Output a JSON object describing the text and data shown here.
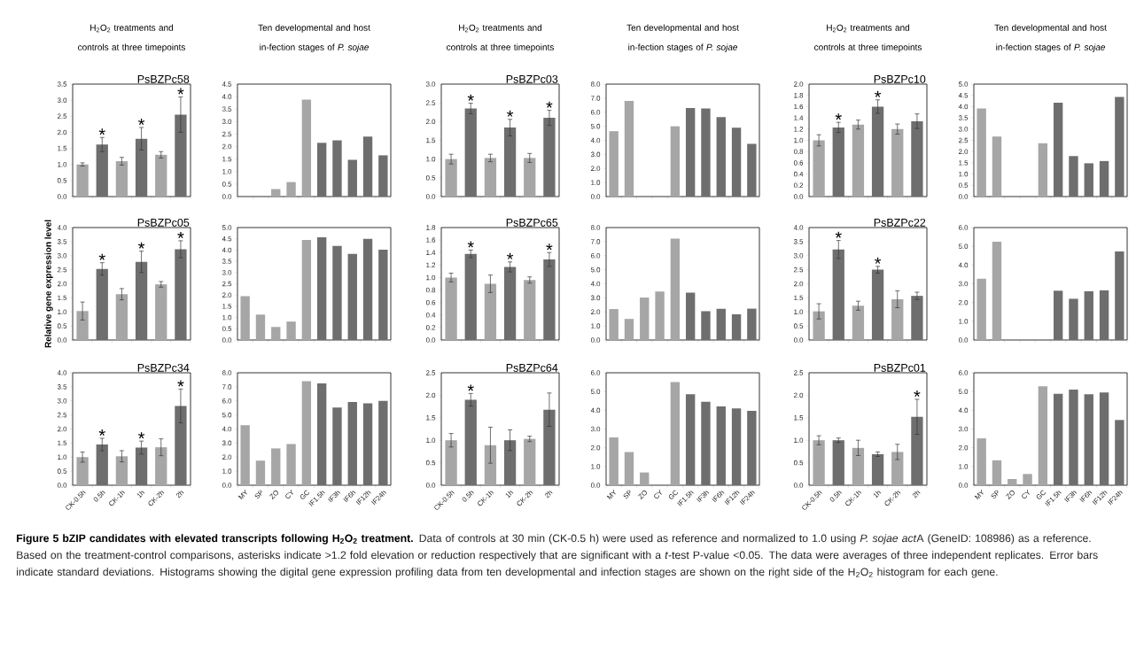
{
  "chart_data": [
    {
      "type": "bar",
      "title": "H$_{2}$O$_{2}$ treatments and controls at three timepoints",
      "subtitle": "PsBZPc58",
      "categories": [
        "CK-0.5h",
        "0.5h",
        "CK-1h",
        "1h",
        "CK-2h",
        "2h"
      ],
      "values": [
        1.0,
        1.62,
        1.1,
        1.8,
        1.3,
        2.55
      ],
      "errors": [
        0.05,
        0.22,
        0.12,
        0.35,
        0.1,
        0.55
      ],
      "colors": [
        "#a6a6a6",
        "#6e6e6e",
        "#a6a6a6",
        "#6e6e6e",
        "#a6a6a6",
        "#6e6e6e"
      ],
      "ylim": [
        0,
        3.5
      ],
      "yticks": [
        {
          "value": 0,
          "label": "0.0"
        },
        0.5,
        {
          "value": 1,
          "label": "1.0"
        },
        1.5,
        {
          "value": 2,
          "label": "2.0"
        },
        2.5,
        {
          "value": 3,
          "label": "3.0"
        },
        3.5
      ],
      "tick_labels": "y",
      "annotations": [
        "Figure 5 bZIP candidates with elevated transcripts following H$_{2}$O$_{2}$ treatment.",
        "Data of controls at 30 min (CK-0.5 h) were used as reference and normalized to 1.0 using *P. sojae act*",
        "A (GeneID: 108986) as a reference. Based on the treatment-control comparisons, asterisks indicate >1.2 fold elevation or reduction respectively that are significant with a *t*-test P-value <0.05. The data were averages of three independent replicates. Error bars indicate standard deviations. Histograms showing the digital gene expression profiling data from ten developmental and infection stages are shown on the right side of the H$_{2}$O$_{2}$ histogram for each gene.",
        {
          "text": "*",
          "x": "0.5h",
          "y": 1.84
        },
        {
          "text": "*",
          "x": "1h",
          "y": 2.15
        },
        {
          "text": "*",
          "x": "2h",
          "y": 3.1
        }
      ]
    },
    {
      "type": "bar",
      "title": "Ten developmental and host in-fection stages of *P. sojae*",
      "categories": [
        "MY",
        "SP",
        "ZO",
        "CY",
        "GC",
        "IF1.5h",
        "IF3h",
        "IF6h",
        "IF12h",
        "IF24h"
      ],
      "values": [
        0,
        0,
        0.3,
        0.58,
        3.88,
        2.15,
        2.25,
        1.47,
        2.4,
        1.65
      ],
      "colors": [
        "#a6a6a6",
        "#a6a6a6",
        "#a6a6a6",
        "#a6a6a6",
        "#a6a6a6",
        "#6e6e6e",
        "#6e6e6e",
        "#6e6e6e",
        "#6e6e6e",
        "#6e6e6e"
      ],
      "ylim": [
        0,
        4.5
      ],
      "yticks": [
        {
          "value": 0,
          "label": "0.0"
        },
        0.5,
        {
          "value": 1,
          "label": "1.0"
        },
        1.5,
        {
          "value": 2,
          "label": "2.0"
        },
        2.5,
        {
          "value": 3,
          "label": "3.0"
        },
        3.5,
        {
          "value": 4,
          "label": "4.0"
        },
        4.5
      ],
      "tick_labels": "y"
    },
    {
      "type": "bar",
      "title": "H$_{2}$O$_{2}$ treatments and controls at three timepoints",
      "subtitle": "PsBZPc03",
      "categories": [
        "CK-0.5h",
        "0.5h",
        "CK-1h",
        "1h",
        "CK-2h",
        "2h"
      ],
      "values": [
        1.0,
        2.35,
        1.03,
        1.84,
        1.03,
        2.1
      ],
      "errors": [
        0.13,
        0.14,
        0.1,
        0.22,
        0.12,
        0.2
      ],
      "colors": [
        "#a6a6a6",
        "#6e6e6e",
        "#a6a6a6",
        "#6e6e6e",
        "#a6a6a6",
        "#6e6e6e"
      ],
      "ylim": [
        0,
        3.0
      ],
      "yticks": [
        {
          "value": 0,
          "label": "0.0"
        },
        0.5,
        {
          "value": 1,
          "label": "1.0"
        },
        1.5,
        {
          "value": 2,
          "label": "2.0"
        },
        2.5,
        {
          "value": 3,
          "label": "3.0"
        }
      ],
      "tick_labels": "y",
      "annotations": [
        {
          "text": "*",
          "x": "0.5h",
          "y": 2.49
        },
        {
          "text": "*",
          "x": "1h",
          "y": 2.06
        },
        {
          "text": "*",
          "x": "2h",
          "y": 2.3
        }
      ]
    },
    {
      "type": "bar",
      "title": "Ten developmental and host in-fection stages of *P. sojae*",
      "categories": [
        "MY",
        "SP",
        "ZO",
        "CY",
        "GC",
        "IF1.5h",
        "IF3h",
        "IF6h",
        "IF12h",
        "IF24h"
      ],
      "values": [
        4.65,
        6.8,
        0,
        0,
        5.0,
        6.3,
        6.27,
        5.65,
        4.9,
        3.75
      ],
      "colors": [
        "#a6a6a6",
        "#a6a6a6",
        "#a6a6a6",
        "#a6a6a6",
        "#a6a6a6",
        "#6e6e6e",
        "#6e6e6e",
        "#6e6e6e",
        "#6e6e6e",
        "#6e6e6e"
      ],
      "ylim": [
        0,
        8
      ],
      "yticks": [
        {
          "value": 0,
          "label": "0.0"
        },
        {
          "value": 1,
          "label": "1.0"
        },
        {
          "value": 2,
          "label": "2.0"
        },
        {
          "value": 3,
          "label": "3.0"
        },
        {
          "value": 4,
          "label": "4.0"
        },
        {
          "value": 5,
          "label": "5.0"
        },
        {
          "value": 6,
          "label": "6.0"
        },
        {
          "value": 7,
          "label": "7.0"
        },
        {
          "value": 8,
          "label": "8.0"
        }
      ],
      "tick_labels": "y"
    },
    {
      "type": "bar",
      "title": "H$_{2}$O$_{2}$ treatments and controls at three timepoints",
      "subtitle": "PsBZPc10",
      "categories": [
        "CK-0.5h",
        "0.5h",
        "CK-1h",
        "1h",
        "CK-2h",
        "2h"
      ],
      "values": [
        1.0,
        1.23,
        1.28,
        1.6,
        1.2,
        1.34
      ],
      "errors": [
        0.1,
        0.09,
        0.08,
        0.12,
        0.09,
        0.13
      ],
      "colors": [
        "#a6a6a6",
        "#6e6e6e",
        "#a6a6a6",
        "#6e6e6e",
        "#a6a6a6",
        "#6e6e6e"
      ],
      "ylim": [
        0,
        2.0
      ],
      "yticks": [
        {
          "value": 0,
          "label": "0.0"
        },
        0.2,
        0.4,
        0.6,
        0.8,
        {
          "value": 1,
          "label": "1.0"
        },
        1.2,
        1.4,
        1.6,
        1.8,
        {
          "value": 2,
          "label": "2.0"
        }
      ],
      "tick_labels": "y",
      "annotations": [
        {
          "text": "*",
          "x": "0.5h",
          "y": 1.32
        },
        {
          "text": "*",
          "x": "1h",
          "y": 1.72
        }
      ]
    },
    {
      "type": "bar",
      "title": "Ten developmental and host in-fection stages of *P. sojae*",
      "categories": [
        "MY",
        "SP",
        "ZO",
        "CY",
        "GC",
        "IF1.5h",
        "IF3h",
        "IF6h",
        "IF12h",
        "IF24h"
      ],
      "values": [
        3.92,
        2.67,
        0,
        0,
        2.37,
        4.17,
        1.8,
        1.48,
        1.58,
        4.43
      ],
      "colors": [
        "#a6a6a6",
        "#a6a6a6",
        "#a6a6a6",
        "#a6a6a6",
        "#a6a6a6",
        "#6e6e6e",
        "#6e6e6e",
        "#6e6e6e",
        "#6e6e6e",
        "#6e6e6e"
      ],
      "ylim": [
        0,
        5.0
      ],
      "yticks": [
        {
          "value": 0,
          "label": "0.0"
        },
        0.5,
        {
          "value": 1,
          "label": "1.0"
        },
        1.5,
        {
          "value": 2,
          "label": "2.0"
        },
        2.5,
        {
          "value": 3,
          "label": "3.0"
        },
        3.5,
        {
          "value": 4,
          "label": "4.0"
        },
        4.5,
        {
          "value": 5,
          "label": "5.0"
        }
      ],
      "tick_labels": "y"
    },
    {
      "type": "bar",
      "title": "PsBZPc05",
      "ylabel": "Relative gene expression level",
      "categories": [
        "CK-0.5h",
        "0.5h",
        "CK-1h",
        "1h",
        "CK-2h",
        "2h"
      ],
      "values": [
        1.03,
        2.53,
        1.63,
        2.78,
        1.98,
        3.23
      ],
      "errors": [
        0.32,
        0.22,
        0.2,
        0.38,
        0.1,
        0.3
      ],
      "colors": [
        "#a6a6a6",
        "#6e6e6e",
        "#a6a6a6",
        "#6e6e6e",
        "#a6a6a6",
        "#6e6e6e"
      ],
      "ylim": [
        0,
        4.0
      ],
      "yticks": [
        {
          "value": 0,
          "label": "0.0"
        },
        0.5,
        {
          "value": 1,
          "label": "1.0"
        },
        1.5,
        {
          "value": 2,
          "label": "2.0"
        },
        2.5,
        {
          "value": 3,
          "label": "3.0"
        },
        3.5,
        {
          "value": 4,
          "label": "4.0"
        }
      ],
      "tick_labels": "y",
      "annotations": [
        {
          "text": "*",
          "x": "0.5h",
          "y": 2.75
        },
        {
          "text": "*",
          "x": "1h",
          "y": 3.16
        },
        {
          "text": "*",
          "x": "2h",
          "y": 3.53
        }
      ]
    },
    {
      "type": "bar",
      "categories": [
        "MY",
        "SP",
        "ZO",
        "CY",
        "GC",
        "IF1.5h",
        "IF3h",
        "IF6h",
        "IF12h",
        "IF24h"
      ],
      "values": [
        1.95,
        1.13,
        0.58,
        0.82,
        4.45,
        4.57,
        4.18,
        3.83,
        4.5,
        4.02
      ],
      "colors": [
        "#a6a6a6",
        "#a6a6a6",
        "#a6a6a6",
        "#a6a6a6",
        "#a6a6a6",
        "#6e6e6e",
        "#6e6e6e",
        "#6e6e6e",
        "#6e6e6e",
        "#6e6e6e"
      ],
      "ylim": [
        0,
        5.0
      ],
      "yticks": [
        {
          "value": 0,
          "label": "0.0"
        },
        0.5,
        {
          "value": 1,
          "label": "1.0"
        },
        1.5,
        {
          "value": 2,
          "label": "2.0"
        },
        2.5,
        {
          "value": 3,
          "label": "3.0"
        },
        3.5,
        {
          "value": 4,
          "label": "4.0"
        },
        4.5,
        {
          "value": 5,
          "label": "5.0"
        }
      ],
      "tick_labels": "y"
    },
    {
      "type": "bar",
      "title": "PsBZPc65",
      "categories": [
        "CK-0.5h",
        "0.5h",
        "CK-1h",
        "1h",
        "CK-2h",
        "2h"
      ],
      "values": [
        1.0,
        1.38,
        0.9,
        1.17,
        0.96,
        1.29
      ],
      "errors": [
        0.07,
        0.06,
        0.14,
        0.08,
        0.05,
        0.11
      ],
      "colors": [
        "#a6a6a6",
        "#6e6e6e",
        "#a6a6a6",
        "#6e6e6e",
        "#a6a6a6",
        "#6e6e6e"
      ],
      "ylim": [
        0,
        1.8
      ],
      "yticks": [
        {
          "value": 0,
          "label": "0.0"
        },
        0.2,
        0.4,
        0.6,
        0.8,
        {
          "value": 1,
          "label": "1.0"
        },
        1.2,
        1.4,
        1.6,
        1.8
      ],
      "tick_labels": "y",
      "annotations": [
        {
          "text": "*",
          "x": "0.5h",
          "y": 1.44
        },
        {
          "text": "*",
          "x": "1h",
          "y": 1.25
        },
        {
          "text": "*",
          "x": "2h",
          "y": 1.4
        }
      ]
    },
    {
      "type": "bar",
      "categories": [
        "MY",
        "SP",
        "ZO",
        "CY",
        "GC",
        "IF1.5h",
        "IF3h",
        "IF6h",
        "IF12h",
        "IF24h"
      ],
      "values": [
        2.2,
        1.5,
        3.02,
        3.45,
        7.22,
        3.37,
        2.05,
        2.22,
        1.83,
        2.23
      ],
      "colors": [
        "#a6a6a6",
        "#a6a6a6",
        "#a6a6a6",
        "#a6a6a6",
        "#a6a6a6",
        "#6e6e6e",
        "#6e6e6e",
        "#6e6e6e",
        "#6e6e6e",
        "#6e6e6e"
      ],
      "ylim": [
        0,
        8
      ],
      "yticks": [
        {
          "value": 0,
          "label": "0.0"
        },
        {
          "value": 1,
          "label": "1.0"
        },
        {
          "value": 2,
          "label": "2.0"
        },
        {
          "value": 3,
          "label": "3.0"
        },
        {
          "value": 4,
          "label": "4.0"
        },
        {
          "value": 5,
          "label": "5.0"
        },
        {
          "value": 6,
          "label": "6.0"
        },
        {
          "value": 7,
          "label": "7.0"
        },
        {
          "value": 8,
          "label": "8.0"
        }
      ],
      "tick_labels": "y"
    },
    {
      "type": "bar",
      "title": "PsBZPc22",
      "categories": [
        "CK-0.5h",
        "0.5h",
        "CK-1h",
        "1h",
        "CK-2h",
        "2h"
      ],
      "values": [
        1.02,
        3.22,
        1.22,
        2.5,
        1.45,
        1.57
      ],
      "errors": [
        0.27,
        0.32,
        0.16,
        0.12,
        0.3,
        0.13
      ],
      "colors": [
        "#a6a6a6",
        "#6e6e6e",
        "#a6a6a6",
        "#6e6e6e",
        "#a6a6a6",
        "#6e6e6e"
      ],
      "ylim": [
        0,
        4.0
      ],
      "yticks": [
        {
          "value": 0,
          "label": "0.0"
        },
        0.5,
        {
          "value": 1,
          "label": "1.0"
        },
        1.5,
        {
          "value": 2,
          "label": "2.0"
        },
        2.5,
        {
          "value": 3,
          "label": "3.0"
        },
        3.5,
        {
          "value": 4,
          "label": "4.0"
        }
      ],
      "tick_labels": "y",
      "annotations": [
        {
          "text": "*",
          "x": "0.5h",
          "y": 3.54
        },
        {
          "text": "*",
          "x": "1h",
          "y": 2.62
        }
      ]
    },
    {
      "type": "bar",
      "categories": [
        "MY",
        "SP",
        "ZO",
        "CY",
        "GC",
        "IF1.5h",
        "IF3h",
        "IF6h",
        "IF12h",
        "IF24h"
      ],
      "values": [
        3.27,
        5.25,
        0,
        0,
        0,
        2.63,
        2.2,
        2.6,
        2.65,
        4.72
      ],
      "colors": [
        "#a6a6a6",
        "#a6a6a6",
        "#a6a6a6",
        "#a6a6a6",
        "#a6a6a6",
        "#6e6e6e",
        "#6e6e6e",
        "#6e6e6e",
        "#6e6e6e",
        "#6e6e6e"
      ],
      "ylim": [
        0,
        6
      ],
      "yticks": [
        {
          "value": 0,
          "label": "0.0"
        },
        {
          "value": 1,
          "label": "1.0"
        },
        {
          "value": 2,
          "label": "2.0"
        },
        {
          "value": 3,
          "label": "3.0"
        },
        {
          "value": 4,
          "label": "4.0"
        },
        {
          "value": 5,
          "label": "5.0"
        },
        {
          "value": 6,
          "label": "6.0"
        }
      ],
      "tick_labels": "y"
    },
    {
      "type": "bar",
      "title": "PsBZPc34",
      "categories": [
        "CK-0.5h",
        "0.5h",
        "CK-1h",
        "1h",
        "CK-2h",
        "2h"
      ],
      "values": [
        1.0,
        1.45,
        1.03,
        1.34,
        1.35,
        2.82
      ],
      "errors": [
        0.18,
        0.22,
        0.2,
        0.23,
        0.3,
        0.6
      ],
      "colors": [
        "#a6a6a6",
        "#6e6e6e",
        "#a6a6a6",
        "#6e6e6e",
        "#a6a6a6",
        "#6e6e6e"
      ],
      "ylim": [
        0,
        4.0
      ],
      "yticks": [
        {
          "value": 0,
          "label": "0.0"
        },
        0.5,
        {
          "value": 1,
          "label": "1.0"
        },
        1.5,
        {
          "value": 2,
          "label": "2.0"
        },
        2.5,
        {
          "value": 3,
          "label": "3.0"
        },
        3.5,
        {
          "value": 4,
          "label": "4.0"
        }
      ],
      "annotations": [
        {
          "text": "*",
          "x": "0.5h",
          "y": 1.67
        },
        {
          "text": "*",
          "x": "1h",
          "y": 1.57
        },
        {
          "text": "*",
          "x": "2h",
          "y": 3.42
        }
      ]
    },
    {
      "type": "bar",
      "categories": [
        "MY",
        "SP",
        "ZO",
        "CY",
        "GC",
        "IF1.5h",
        "IF3h",
        "IF6h",
        "IF12h",
        "IF24h"
      ],
      "values": [
        4.27,
        1.75,
        2.62,
        2.93,
        7.4,
        7.25,
        5.52,
        5.92,
        5.83,
        6.0
      ],
      "colors": [
        "#a6a6a6",
        "#a6a6a6",
        "#a6a6a6",
        "#a6a6a6",
        "#a6a6a6",
        "#6e6e6e",
        "#6e6e6e",
        "#6e6e6e",
        "#6e6e6e",
        "#6e6e6e"
      ],
      "ylim": [
        0,
        8
      ],
      "yticks": [
        {
          "value": 0,
          "label": "0.0"
        },
        {
          "value": 1,
          "label": "1.0"
        },
        {
          "value": 2,
          "label": "2.0"
        },
        {
          "value": 3,
          "label": "3.0"
        },
        {
          "value": 4,
          "label": "4.0"
        },
        {
          "value": 5,
          "label": "5.0"
        },
        {
          "value": 6,
          "label": "6.0"
        },
        {
          "value": 7,
          "label": "7.0"
        },
        {
          "value": 8,
          "label": "8.0"
        }
      ]
    },
    {
      "type": "bar",
      "title": "PsBZPc64",
      "categories": [
        "CK-0.5h",
        "0.5h",
        "CK-1h",
        "1h",
        "CK-2h",
        "2h"
      ],
      "values": [
        1.0,
        1.9,
        0.89,
        1.0,
        1.03,
        1.68
      ],
      "errors": [
        0.15,
        0.14,
        0.4,
        0.23,
        0.06,
        0.37
      ],
      "colors": [
        "#a6a6a6",
        "#6e6e6e",
        "#a6a6a6",
        "#6e6e6e",
        "#a6a6a6",
        "#6e6e6e"
      ],
      "ylim": [
        0,
        2.5
      ],
      "yticks": [
        {
          "value": 0,
          "label": "0.0"
        },
        0.5,
        {
          "value": 1,
          "label": "1.0"
        },
        1.5,
        {
          "value": 2,
          "label": "2.0"
        },
        2.5
      ],
      "annotations": [
        {
          "text": "*",
          "x": "0.5h",
          "y": 2.04
        }
      ]
    },
    {
      "type": "bar",
      "categories": [
        "MY",
        "SP",
        "ZO",
        "CY",
        "GC",
        "IF1.5h",
        "IF3h",
        "IF6h",
        "IF12h",
        "IF24h"
      ],
      "values": [
        2.55,
        1.77,
        0.68,
        0,
        5.5,
        4.85,
        4.45,
        4.2,
        4.1,
        3.97
      ],
      "colors": [
        "#a6a6a6",
        "#a6a6a6",
        "#a6a6a6",
        "#a6a6a6",
        "#a6a6a6",
        "#6e6e6e",
        "#6e6e6e",
        "#6e6e6e",
        "#6e6e6e",
        "#6e6e6e"
      ],
      "ylim": [
        0,
        6
      ],
      "yticks": [
        {
          "value": 0,
          "label": "0.0"
        },
        {
          "value": 1,
          "label": "1.0"
        },
        {
          "value": 2,
          "label": "2.0"
        },
        {
          "value": 3,
          "label": "3.0"
        },
        {
          "value": 4,
          "label": "4.0"
        },
        {
          "value": 5,
          "label": "5.0"
        },
        {
          "value": 6,
          "label": "6.0"
        }
      ]
    },
    {
      "type": "bar",
      "title": "PsBZPc01",
      "categories": [
        "CK-0.5h",
        "0.5h",
        "CK-1h",
        "1h",
        "CK-2h",
        "2h"
      ],
      "values": [
        1.0,
        1.0,
        0.83,
        0.69,
        0.74,
        1.52
      ],
      "errors": [
        0.1,
        0.05,
        0.17,
        0.05,
        0.17,
        0.39
      ],
      "colors": [
        "#a6a6a6",
        "#6e6e6e",
        "#a6a6a6",
        "#6e6e6e",
        "#a6a6a6",
        "#6e6e6e"
      ],
      "ylim": [
        0,
        2.5
      ],
      "yticks": [
        {
          "value": 0,
          "label": "0.0"
        },
        0.5,
        {
          "value": 1,
          "label": "1.0"
        },
        1.5,
        {
          "value": 2,
          "label": "2.0"
        },
        2.5
      ],
      "annotations": [
        {
          "text": "*",
          "x": "2h",
          "y": 1.91
        }
      ]
    },
    {
      "type": "bar",
      "categories": [
        "MY",
        "SP",
        "ZO",
        "CY",
        "GC",
        "IF1.5h",
        "IF3h",
        "IF6h",
        "IF12h",
        "IF24h"
      ],
      "values": [
        2.5,
        1.33,
        0.33,
        0.6,
        5.28,
        4.88,
        5.1,
        4.85,
        4.95,
        3.48
      ],
      "colors": [
        "#a6a6a6",
        "#a6a6a6",
        "#a6a6a6",
        "#a6a6a6",
        "#a6a6a6",
        "#6e6e6e",
        "#6e6e6e",
        "#6e6e6e",
        "#6e6e6e",
        "#6e6e6e"
      ],
      "ylim": [
        0,
        6
      ],
      "yticks": [
        {
          "value": 0,
          "label": "0.0"
        },
        {
          "value": 1,
          "label": "1.0"
        },
        {
          "value": 2,
          "label": "2.0"
        },
        {
          "value": 3,
          "label": "3.0"
        },
        {
          "value": 4,
          "label": "4.0"
        },
        {
          "value": 5,
          "label": "5.0"
        },
        {
          "value": 6,
          "label": "6.0"
        }
      ]
    }
  ]
}
